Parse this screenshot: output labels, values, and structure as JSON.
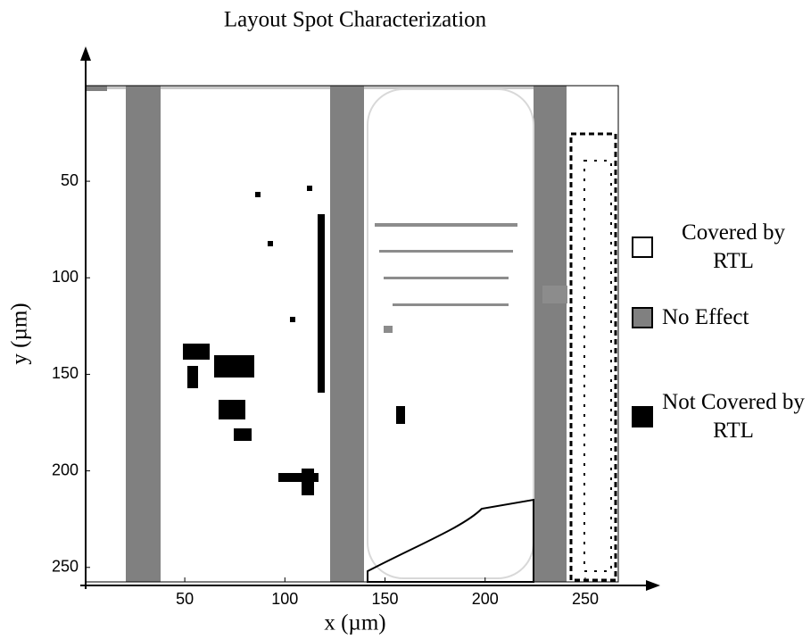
{
  "chart_data": {
    "type": "heatmap",
    "title": "Layout Spot Characterization",
    "x_label": "x (µm)",
    "y_label": "y (µm)",
    "xlim": [
      0.5,
      266.5
    ],
    "ylim": [
      0.5,
      257.5
    ],
    "y_inverted": true,
    "xticks": [
      50,
      100,
      150,
      200,
      250
    ],
    "yticks": [
      50,
      100,
      150,
      200,
      250
    ],
    "legend": [
      {
        "name": "Covered by RTL",
        "color": "#ffffff"
      },
      {
        "name": "No Effect",
        "color": "#808080"
      },
      {
        "name": "Not Covered by RTL",
        "color": "#000000"
      }
    ]
  }
}
